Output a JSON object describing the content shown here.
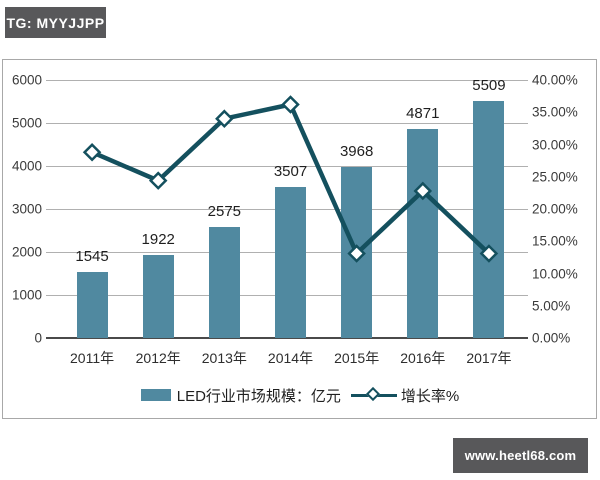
{
  "badges": {
    "top_left": "TG: MYYJJPP",
    "bottom_right": "www.heetl68.com",
    "background": "#58585a",
    "text_color": "#ffffff"
  },
  "chart_data": {
    "type": "bar",
    "subtype": "bar-line-combo",
    "title": "",
    "categories": [
      "2011年",
      "2012年",
      "2013年",
      "2014年",
      "2015年",
      "2016年",
      "2017年"
    ],
    "series": [
      {
        "name": "LED行业市场规模：亿元",
        "type": "bar",
        "axis": "left",
        "color": "#5089a0",
        "values": [
          1545,
          1922,
          2575,
          3507,
          3968,
          4871,
          5509
        ],
        "data_labels": [
          "1545",
          "1922",
          "2575",
          "3507",
          "3968",
          "4871",
          "5509"
        ]
      },
      {
        "name": "增长率%",
        "type": "line",
        "axis": "right",
        "color": "#14505e",
        "marker": "white-diamond",
        "values": [
          28.8,
          24.4,
          34.0,
          36.2,
          13.1,
          22.8,
          13.1
        ]
      }
    ],
    "left_axis": {
      "min": 0,
      "max": 6000,
      "step": 1000,
      "tick_labels": [
        "6000",
        "5000",
        "4000",
        "3000",
        "2000",
        "1000",
        "0"
      ]
    },
    "right_axis": {
      "min": 0,
      "max": 40,
      "step": 5,
      "tick_labels": [
        "40.00%",
        "35.00%",
        "30.00%",
        "25.00%",
        "20.00%",
        "15.00%",
        "10.00%",
        "5.00%",
        "0.00%"
      ]
    },
    "legend": {
      "position": "bottom",
      "items": [
        {
          "label": "LED行业市场规模：亿元",
          "marker": "bar-swatch"
        },
        {
          "label": "增长率%",
          "marker": "line-diamond"
        }
      ]
    },
    "grid": "horizontal",
    "colors": {
      "grid": "#b0b0b0",
      "axis_line": "#4a4a4a",
      "frame_border": "#a8a8a8",
      "tick_text": "#3a3a3a",
      "data_label": "#1f1f1f"
    }
  }
}
